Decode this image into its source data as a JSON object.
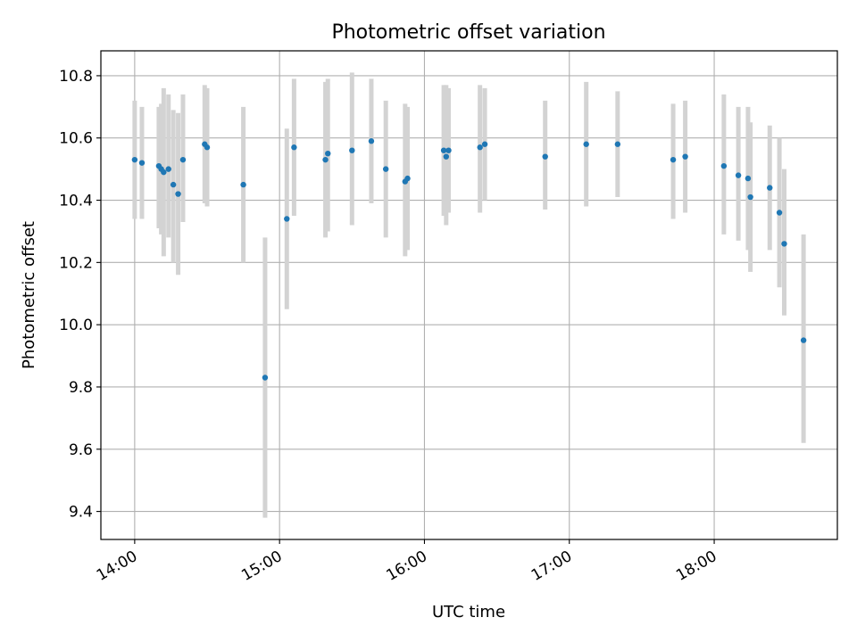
{
  "chart_data": {
    "type": "scatter",
    "title": "Photometric offset variation",
    "xlabel": "UTC time",
    "ylabel": "Photometric offset",
    "x_unit": "UTC hours",
    "xlim": [
      "13:46",
      "18:51"
    ],
    "ylim": [
      9.31,
      10.88
    ],
    "xticks": [
      "14:00",
      "15:00",
      "16:00",
      "17:00",
      "18:00"
    ],
    "yticks": [
      "9.4",
      "9.6",
      "9.8",
      "10.0",
      "10.2",
      "10.4",
      "10.6",
      "10.8"
    ],
    "grid": true,
    "colors": {
      "marker": "#1f77b4",
      "errorbar": "#d3d3d3",
      "grid": "#b0b0b0"
    },
    "series": [
      {
        "points": [
          {
            "t": "14:00",
            "y": 10.53,
            "lo": 10.34,
            "hi": 10.72
          },
          {
            "t": "14:03",
            "y": 10.52,
            "lo": 10.34,
            "hi": 10.7
          },
          {
            "t": "14:10",
            "y": 10.51,
            "lo": 10.31,
            "hi": 10.7
          },
          {
            "t": "14:11",
            "y": 10.5,
            "lo": 10.29,
            "hi": 10.71
          },
          {
            "t": "14:12",
            "y": 10.49,
            "lo": 10.22,
            "hi": 10.76
          },
          {
            "t": "14:14",
            "y": 10.5,
            "lo": 10.28,
            "hi": 10.74
          },
          {
            "t": "14:16",
            "y": 10.45,
            "lo": 10.2,
            "hi": 10.69
          },
          {
            "t": "14:18",
            "y": 10.42,
            "lo": 10.16,
            "hi": 10.68
          },
          {
            "t": "14:20",
            "y": 10.53,
            "lo": 10.33,
            "hi": 10.74
          },
          {
            "t": "14:29",
            "y": 10.58,
            "lo": 10.39,
            "hi": 10.77
          },
          {
            "t": "14:30",
            "y": 10.57,
            "lo": 10.38,
            "hi": 10.76
          },
          {
            "t": "14:45",
            "y": 10.45,
            "lo": 10.2,
            "hi": 10.7
          },
          {
            "t": "14:54",
            "y": 9.83,
            "lo": 9.38,
            "hi": 10.28
          },
          {
            "t": "15:03",
            "y": 10.34,
            "lo": 10.05,
            "hi": 10.63
          },
          {
            "t": "15:06",
            "y": 10.57,
            "lo": 10.35,
            "hi": 10.79
          },
          {
            "t": "15:19",
            "y": 10.53,
            "lo": 10.28,
            "hi": 10.78
          },
          {
            "t": "15:20",
            "y": 10.55,
            "lo": 10.3,
            "hi": 10.79
          },
          {
            "t": "15:30",
            "y": 10.56,
            "lo": 10.32,
            "hi": 10.81
          },
          {
            "t": "15:38",
            "y": 10.59,
            "lo": 10.39,
            "hi": 10.79
          },
          {
            "t": "15:44",
            "y": 10.5,
            "lo": 10.28,
            "hi": 10.72
          },
          {
            "t": "15:52",
            "y": 10.46,
            "lo": 10.22,
            "hi": 10.71
          },
          {
            "t": "15:53",
            "y": 10.47,
            "lo": 10.24,
            "hi": 10.7
          },
          {
            "t": "16:08",
            "y": 10.56,
            "lo": 10.35,
            "hi": 10.77
          },
          {
            "t": "16:09",
            "y": 10.54,
            "lo": 10.32,
            "hi": 10.77
          },
          {
            "t": "16:10",
            "y": 10.56,
            "lo": 10.36,
            "hi": 10.76
          },
          {
            "t": "16:23",
            "y": 10.57,
            "lo": 10.36,
            "hi": 10.77
          },
          {
            "t": "16:25",
            "y": 10.58,
            "lo": 10.4,
            "hi": 10.76
          },
          {
            "t": "16:50",
            "y": 10.54,
            "lo": 10.37,
            "hi": 10.72
          },
          {
            "t": "17:07",
            "y": 10.58,
            "lo": 10.38,
            "hi": 10.78
          },
          {
            "t": "17:20",
            "y": 10.58,
            "lo": 10.41,
            "hi": 10.75
          },
          {
            "t": "17:43",
            "y": 10.53,
            "lo": 10.34,
            "hi": 10.71
          },
          {
            "t": "17:48",
            "y": 10.54,
            "lo": 10.36,
            "hi": 10.72
          },
          {
            "t": "18:04",
            "y": 10.51,
            "lo": 10.29,
            "hi": 10.74
          },
          {
            "t": "18:10",
            "y": 10.48,
            "lo": 10.27,
            "hi": 10.7
          },
          {
            "t": "18:14",
            "y": 10.47,
            "lo": 10.24,
            "hi": 10.7
          },
          {
            "t": "18:15",
            "y": 10.41,
            "lo": 10.17,
            "hi": 10.65
          },
          {
            "t": "18:23",
            "y": 10.44,
            "lo": 10.24,
            "hi": 10.64
          },
          {
            "t": "18:27",
            "y": 10.36,
            "lo": 10.12,
            "hi": 10.6
          },
          {
            "t": "18:29",
            "y": 10.26,
            "lo": 10.03,
            "hi": 10.5
          },
          {
            "t": "18:37",
            "y": 9.95,
            "lo": 9.62,
            "hi": 10.29
          }
        ]
      }
    ]
  }
}
